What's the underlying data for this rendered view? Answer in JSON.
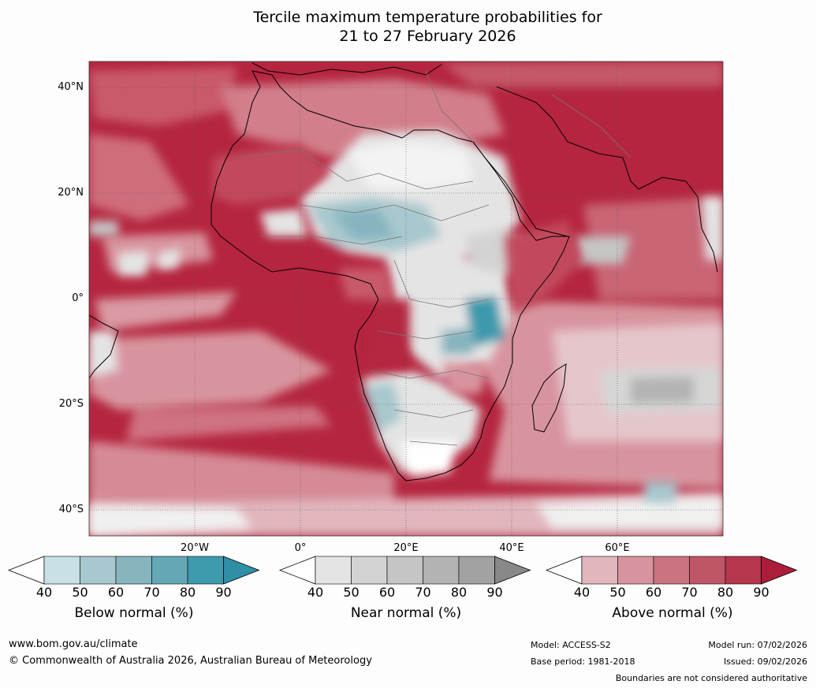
{
  "title_line1": "Tercile maximum temperature probabilities for",
  "title_line2": "21 to 27 February 2026",
  "lat_labels": [
    "40°N",
    "20°N",
    "0°",
    "20°S",
    "40°S"
  ],
  "lon_labels": [
    "20°W",
    "0°",
    "20°E",
    "40°E",
    "60°E"
  ],
  "colorbars": [
    {
      "title": "Below normal (%)",
      "ticks": [
        "40",
        "50",
        "60",
        "70",
        "80",
        "90"
      ],
      "colors": [
        "#ffffff",
        "#c8e0e6",
        "#a7c8ce",
        "#86b4bf",
        "#64a8b6",
        "#3e9aad",
        "#2f8fa6"
      ]
    },
    {
      "title": "Near normal (%)",
      "ticks": [
        "40",
        "50",
        "60",
        "70",
        "80",
        "90"
      ],
      "colors": [
        "#ffffff",
        "#e4e4e4",
        "#d3d3d3",
        "#c5c5c5",
        "#b3b3b3",
        "#a2a2a2",
        "#888888"
      ]
    },
    {
      "title": "Above normal (%)",
      "ticks": [
        "40",
        "50",
        "60",
        "70",
        "80",
        "90"
      ],
      "colors": [
        "#ffffff",
        "#e1b6bd",
        "#d8949e",
        "#cb7380",
        "#bf5668",
        "#b5364d",
        "#ab1d3a"
      ]
    }
  ],
  "footer": {
    "website": "www.bom.gov.au/climate",
    "copyright": "© Commonwealth of Australia 2026, Australian Bureau of Meteorology",
    "model": "Model: ACCESS-S2",
    "base_period": "Base period: 1981-2018",
    "model_run": "Model run: 07/02/2026",
    "issued": "Issued: 09/02/2026",
    "disclaimer": "Boundaries are not considered authoritative"
  }
}
